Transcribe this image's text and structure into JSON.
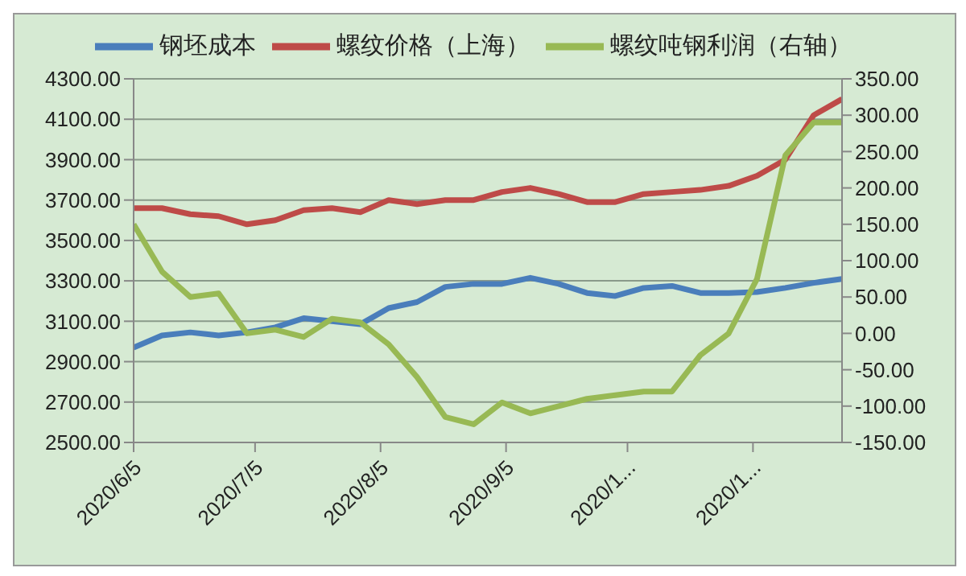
{
  "chart_data": {
    "type": "line",
    "x": [
      "2020-06-05",
      "2020-06-12",
      "2020-06-19",
      "2020-06-26",
      "2020-07-03",
      "2020-07-10",
      "2020-07-17",
      "2020-07-24",
      "2020-07-31",
      "2020-08-07",
      "2020-08-14",
      "2020-08-21",
      "2020-08-28",
      "2020-09-04",
      "2020-09-11",
      "2020-09-18",
      "2020-09-25",
      "2020-10-02",
      "2020-10-09",
      "2020-10-16",
      "2020-10-23",
      "2020-10-30",
      "2020-11-06",
      "2020-11-13",
      "2020-11-20",
      "2020-11-27"
    ],
    "series": [
      {
        "name": "钢坯成本",
        "color": "#4a7ebb",
        "values": [
          2970,
          3030,
          3045,
          3030,
          3045,
          3070,
          3115,
          3100,
          3085,
          3165,
          3195,
          3270,
          3285,
          3285,
          3315,
          3285,
          3240,
          3225,
          3265,
          3275,
          3240,
          3240,
          3245,
          3265,
          3290,
          3310
        ]
      },
      {
        "name": "螺纹价格（上海）",
        "color": "#be4b48",
        "values": [
          3660,
          3660,
          3630,
          3620,
          3580,
          3600,
          3650,
          3660,
          3640,
          3700,
          3680,
          3700,
          3700,
          3740,
          3760,
          3730,
          3690,
          3690,
          3730,
          3740,
          3750,
          3770,
          3820,
          3900,
          4120,
          4200
        ]
      },
      {
        "name": "螺纹吨钢利润（右轴）",
        "color": "#98b954",
        "axis": "y2",
        "values": [
          150,
          85,
          50,
          55,
          0,
          5,
          -5,
          20,
          15,
          -15,
          -60,
          -115,
          -125,
          -95,
          -110,
          -100,
          -90,
          -85,
          -80,
          -80,
          -30,
          0,
          75,
          245,
          290,
          290
        ]
      }
    ],
    "xlim": [
      "2020-06-05",
      "2020-11-27"
    ],
    "xticks": [
      {
        "value": "2020-06-05",
        "label": "2020/6/5"
      },
      {
        "value": "2020-07-05",
        "label": "2020/7/5"
      },
      {
        "value": "2020-08-05",
        "label": "2020/8/5"
      },
      {
        "value": "2020-09-05",
        "label": "2020/9/5"
      },
      {
        "value": "2020-10-05",
        "label": "2020/1..."
      },
      {
        "value": "2020-11-05",
        "label": "2020/1..."
      }
    ],
    "ylim": [
      2500,
      4300
    ],
    "yticks": [
      {
        "value": 2500,
        "label": "2500.00"
      },
      {
        "value": 2700,
        "label": "2700.00"
      },
      {
        "value": 2900,
        "label": "2900.00"
      },
      {
        "value": 3100,
        "label": "3100.00"
      },
      {
        "value": 3300,
        "label": "3300.00"
      },
      {
        "value": 3500,
        "label": "3500.00"
      },
      {
        "value": 3700,
        "label": "3700.00"
      },
      {
        "value": 3900,
        "label": "3900.00"
      },
      {
        "value": 4100,
        "label": "4100.00"
      },
      {
        "value": 4300,
        "label": "4300.00"
      }
    ],
    "y2lim": [
      -150,
      350
    ],
    "y2ticks": [
      {
        "value": -150,
        "label": "-150.00"
      },
      {
        "value": -100,
        "label": "-100.00"
      },
      {
        "value": -50,
        "label": "-50.00"
      },
      {
        "value": 0,
        "label": "0.00"
      },
      {
        "value": 50,
        "label": "50.00"
      },
      {
        "value": 100,
        "label": "100.00"
      },
      {
        "value": 150,
        "label": "150.00"
      },
      {
        "value": 200,
        "label": "200.00"
      },
      {
        "value": 250,
        "label": "250.00"
      },
      {
        "value": 300,
        "label": "300.00"
      },
      {
        "value": 350,
        "label": "350.00"
      }
    ],
    "grid": "y",
    "legend": "top",
    "marker": "none",
    "line_style": "solid"
  }
}
